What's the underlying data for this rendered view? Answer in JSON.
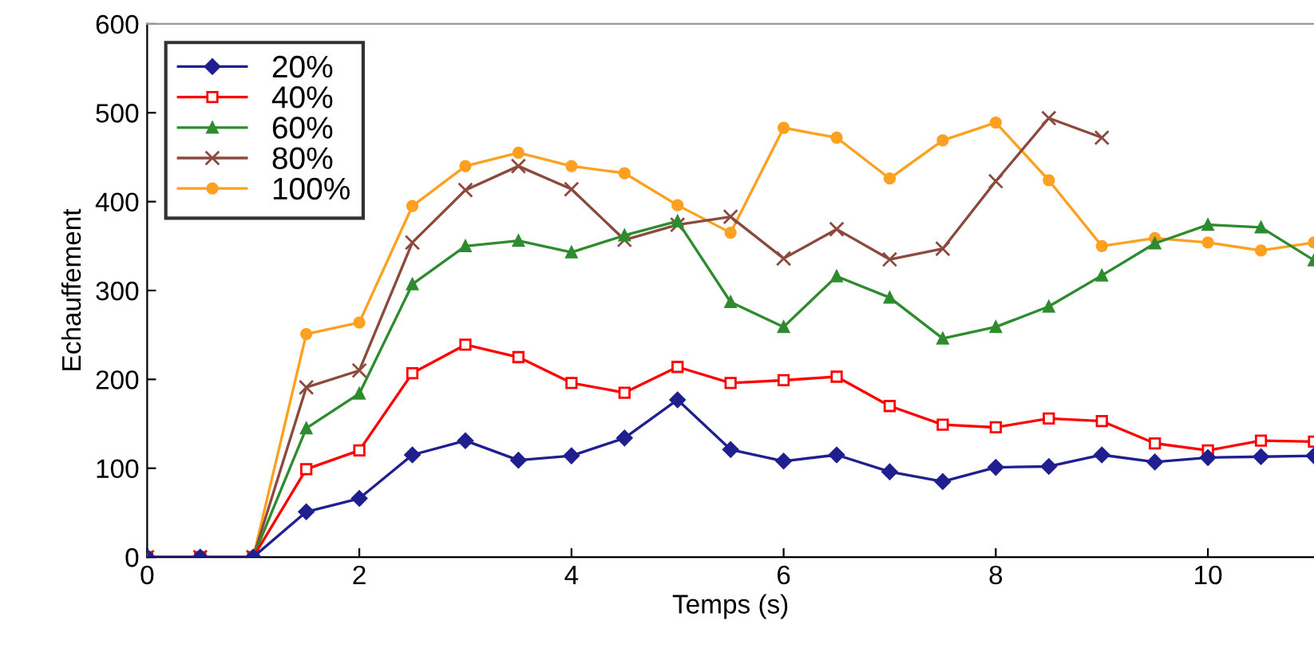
{
  "chart_data": {
    "type": "line",
    "xlabel": "Temps (s)",
    "ylabel": "Echauffement",
    "x": [
      0,
      0.5,
      1,
      1.5,
      2,
      2.5,
      3,
      3.5,
      4,
      4.5,
      5,
      5.5,
      6,
      6.5,
      7,
      7.5,
      8,
      8.5,
      9,
      9.5,
      10,
      10.5,
      11
    ],
    "xlim": [
      0,
      11
    ],
    "xticks": [
      0,
      2,
      4,
      6,
      8,
      10
    ],
    "ylim": [
      0,
      600
    ],
    "yticks": [
      0,
      100,
      200,
      300,
      400,
      500,
      600
    ],
    "grid": false,
    "legend": "top left",
    "line_style": "solid",
    "series": [
      {
        "name": "20%",
        "color": "#1f1f8f",
        "marker": "diamond",
        "values": [
          0,
          0,
          0,
          51,
          66,
          115,
          131,
          109,
          114,
          134,
          177,
          121,
          108,
          115,
          96,
          85,
          101,
          102,
          115,
          107,
          112,
          113,
          114
        ]
      },
      {
        "name": "40%",
        "color": "#ff0000",
        "marker": "square",
        "values": [
          0,
          0,
          0,
          99,
          120,
          207,
          239,
          225,
          196,
          185,
          214,
          196,
          199,
          203,
          170,
          149,
          146,
          156,
          153,
          128,
          120,
          131,
          130
        ]
      },
      {
        "name": "60%",
        "color": "#2e8b2e",
        "marker": "triangle",
        "values": [
          0,
          0,
          0,
          145,
          184,
          307,
          350,
          356,
          343,
          362,
          378,
          287,
          259,
          316,
          292,
          246,
          259,
          282,
          317,
          353,
          374,
          371,
          334
        ]
      },
      {
        "name": "80%",
        "color": "#8b4a3c",
        "marker": "cross",
        "values": [
          0,
          0,
          0,
          191,
          210,
          354,
          413,
          440,
          414,
          357,
          374,
          383,
          336,
          369,
          335,
          347,
          423,
          494,
          472,
          null,
          null,
          null,
          null
        ]
      },
      {
        "name": "100%",
        "color": "#ffa020",
        "marker": "circle",
        "values": [
          0,
          0,
          0,
          251,
          264,
          395,
          440,
          455,
          440,
          432,
          396,
          365,
          483,
          472,
          426,
          469,
          489,
          424,
          350,
          359,
          354,
          345,
          354
        ]
      }
    ]
  }
}
